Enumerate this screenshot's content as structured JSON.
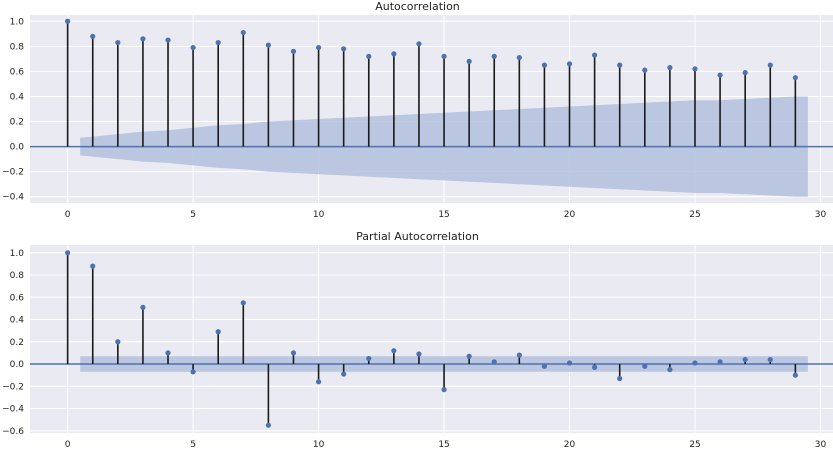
{
  "chart_data": [
    {
      "type": "stem",
      "title": "Autocorrelation",
      "xlim": [
        -1.5,
        30.5
      ],
      "ylim": [
        -0.45,
        1.05
      ],
      "xticks": [
        0,
        5,
        10,
        15,
        20,
        25,
        30
      ],
      "yticks": [
        -0.4,
        -0.2,
        0.0,
        0.2,
        0.4,
        0.6,
        0.8,
        1.0
      ],
      "ytick_labels": [
        "−0.4",
        "−0.2",
        "0.0",
        "0.2",
        "0.4",
        "0.6",
        "0.8",
        "1.0"
      ],
      "grid": true,
      "lags": [
        0,
        1,
        2,
        3,
        4,
        5,
        6,
        7,
        8,
        9,
        10,
        11,
        12,
        13,
        14,
        15,
        16,
        17,
        18,
        19,
        20,
        21,
        22,
        23,
        24,
        25,
        26,
        27,
        28,
        29
      ],
      "values": [
        1.0,
        0.88,
        0.83,
        0.86,
        0.85,
        0.79,
        0.83,
        0.91,
        0.81,
        0.76,
        0.79,
        0.78,
        0.72,
        0.74,
        0.82,
        0.72,
        0.68,
        0.72,
        0.71,
        0.65,
        0.66,
        0.73,
        0.65,
        0.61,
        0.63,
        0.62,
        0.57,
        0.59,
        0.65,
        0.55
      ],
      "confidence_band": {
        "x": [
          0.5,
          1,
          2,
          3,
          4,
          5,
          6,
          7,
          8,
          9,
          10,
          11,
          12,
          13,
          14,
          15,
          16,
          17,
          18,
          19,
          20,
          21,
          22,
          23,
          24,
          25,
          26,
          27,
          28,
          29,
          29.5
        ],
        "upper": [
          0.07,
          0.08,
          0.1,
          0.12,
          0.13,
          0.15,
          0.17,
          0.18,
          0.2,
          0.21,
          0.22,
          0.23,
          0.24,
          0.25,
          0.26,
          0.27,
          0.28,
          0.29,
          0.3,
          0.31,
          0.32,
          0.33,
          0.34,
          0.35,
          0.36,
          0.37,
          0.37,
          0.38,
          0.39,
          0.4,
          0.4
        ],
        "lower": [
          -0.07,
          -0.08,
          -0.1,
          -0.12,
          -0.13,
          -0.15,
          -0.17,
          -0.18,
          -0.2,
          -0.21,
          -0.22,
          -0.23,
          -0.24,
          -0.25,
          -0.26,
          -0.27,
          -0.28,
          -0.29,
          -0.3,
          -0.31,
          -0.32,
          -0.33,
          -0.34,
          -0.35,
          -0.36,
          -0.37,
          -0.37,
          -0.38,
          -0.39,
          -0.4,
          -0.4
        ]
      }
    },
    {
      "type": "stem",
      "title": "Partial Autocorrelation",
      "xlim": [
        -1.5,
        30.5
      ],
      "ylim": [
        -0.62,
        1.07
      ],
      "xticks": [
        0,
        5,
        10,
        15,
        20,
        25,
        30
      ],
      "yticks": [
        -0.6,
        -0.4,
        -0.2,
        0.0,
        0.2,
        0.4,
        0.6,
        0.8,
        1.0
      ],
      "ytick_labels": [
        "−0.6",
        "−0.4",
        "−0.2",
        "0.0",
        "0.2",
        "0.4",
        "0.6",
        "0.8",
        "1.0"
      ],
      "grid": true,
      "lags": [
        0,
        1,
        2,
        3,
        4,
        5,
        6,
        7,
        8,
        9,
        10,
        11,
        12,
        13,
        14,
        15,
        16,
        17,
        18,
        19,
        20,
        21,
        22,
        23,
        24,
        25,
        26,
        27,
        28,
        29
      ],
      "values": [
        1.0,
        0.88,
        0.2,
        0.51,
        0.1,
        -0.07,
        0.29,
        0.55,
        -0.55,
        0.1,
        -0.16,
        -0.09,
        0.05,
        0.12,
        0.09,
        -0.23,
        0.07,
        0.02,
        0.08,
        -0.02,
        0.01,
        -0.03,
        -0.13,
        -0.02,
        -0.05,
        0.01,
        0.02,
        0.04,
        0.04,
        -0.1
      ],
      "confidence_band": {
        "x": [
          0.5,
          29.5
        ],
        "upper": [
          0.07,
          0.07
        ],
        "lower": [
          -0.07,
          -0.07
        ]
      }
    }
  ],
  "colors": {
    "plot_bg": "#eaeaf2",
    "grid": "#ffffff",
    "stem": "#1a1a1a",
    "marker": "#4c72b0",
    "band": "#b3bfdd",
    "zero_line": "#4c72b0"
  }
}
